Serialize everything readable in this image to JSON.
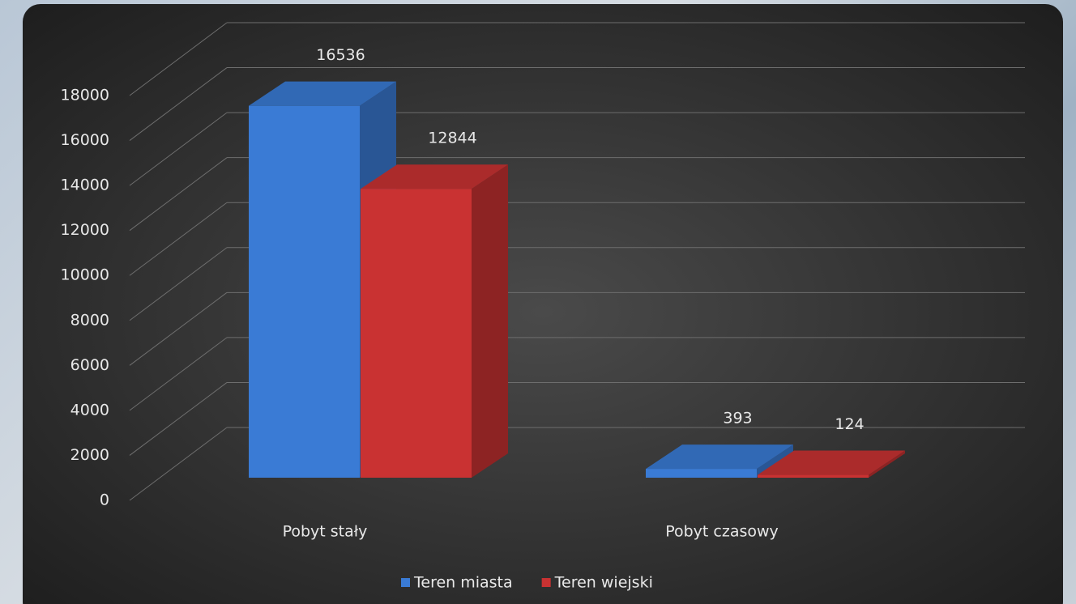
{
  "chart_data": {
    "type": "bar3d",
    "categories": [
      "Pobyt stały",
      "Pobyt czasowy"
    ],
    "series": [
      {
        "name": "Teren miasta",
        "color": "#3a7bd5",
        "values": [
          16536,
          393
        ]
      },
      {
        "name": "Teren wiejski",
        "color": "#c93232",
        "values": [
          12844,
          124
        ]
      }
    ],
    "ylim": [
      0,
      18000
    ],
    "yticks": [
      0,
      2000,
      4000,
      6000,
      8000,
      10000,
      12000,
      14000,
      16000,
      18000
    ],
    "grid": true,
    "legend": "bottom"
  }
}
